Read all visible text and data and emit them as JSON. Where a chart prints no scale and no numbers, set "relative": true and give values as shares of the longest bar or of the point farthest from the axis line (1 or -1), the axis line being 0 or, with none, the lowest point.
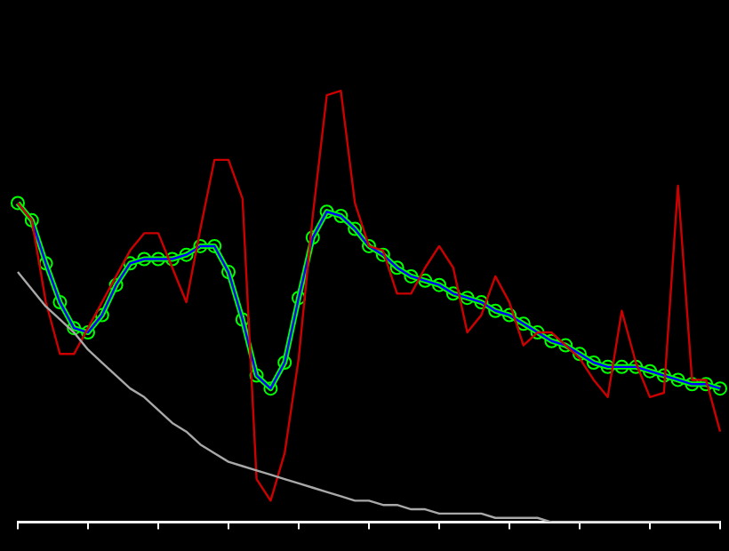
{
  "chart_data": {
    "type": "line",
    "relative": true,
    "legend": false,
    "grid": false,
    "categories": [
      null,
      null,
      null,
      null,
      null,
      null,
      null,
      null,
      null,
      null,
      null,
      null,
      null,
      null,
      null,
      null,
      null,
      null,
      null,
      null,
      null,
      null,
      null,
      null,
      null,
      null,
      null,
      null,
      null,
      null,
      null,
      null,
      null,
      null,
      null,
      null,
      null,
      null,
      null,
      null,
      null,
      null,
      null,
      null,
      null,
      null,
      null,
      null,
      null,
      null,
      null
    ],
    "series": [
      {
        "color": "#a8a8a8",
        "marker": "none",
        "values": [
          0.58,
          0.54,
          0.5,
          0.47,
          0.44,
          0.4,
          0.37,
          0.34,
          0.31,
          0.29,
          0.26,
          0.23,
          0.21,
          0.18,
          0.16,
          0.14,
          0.13,
          0.12,
          0.11,
          0.1,
          0.09,
          0.08,
          0.07,
          0.06,
          0.05,
          0.05,
          0.04,
          0.04,
          0.03,
          0.03,
          0.02,
          0.02,
          0.02,
          0.02,
          0.01,
          0.01,
          0.01,
          0.01,
          0,
          0,
          0,
          0,
          0,
          0,
          0,
          0,
          0,
          0,
          0,
          0,
          0
        ]
      },
      {
        "color": "#cc0000",
        "marker": "none",
        "values": [
          0.74,
          0.7,
          0.51,
          0.39,
          0.39,
          0.45,
          0.51,
          0.57,
          0.63,
          0.67,
          0.67,
          0.59,
          0.51,
          0.68,
          0.84,
          0.84,
          0.75,
          0.1,
          0.05,
          0.16,
          0.38,
          0.71,
          0.99,
          1,
          0.74,
          0.64,
          0.63,
          0.53,
          0.53,
          0.59,
          0.64,
          0.59,
          0.44,
          0.48,
          0.57,
          0.51,
          0.41,
          0.44,
          0.44,
          0.41,
          0.38,
          0.33,
          0.29,
          0.49,
          0.37,
          0.29,
          0.3,
          0.78,
          0.33,
          0.33,
          0.21
        ]
      },
      {
        "color": "#0000ff",
        "marker": "none",
        "values": [
          0.74,
          0.7,
          0.6,
          0.51,
          0.45,
          0.44,
          0.48,
          0.55,
          0.6,
          0.61,
          0.61,
          0.61,
          0.62,
          0.64,
          0.64,
          0.58,
          0.47,
          0.34,
          0.31,
          0.37,
          0.52,
          0.66,
          0.72,
          0.71,
          0.68,
          0.64,
          0.62,
          0.59,
          0.57,
          0.56,
          0.55,
          0.53,
          0.52,
          0.51,
          0.49,
          0.48,
          0.46,
          0.44,
          0.42,
          0.41,
          0.39,
          0.37,
          0.36,
          0.36,
          0.36,
          0.35,
          0.34,
          0.33,
          0.32,
          0.32,
          0.31
        ]
      },
      {
        "color": "#00ff00",
        "marker": "circle",
        "values": [
          0.74,
          0.7,
          0.6,
          0.51,
          0.45,
          0.44,
          0.48,
          0.55,
          0.6,
          0.61,
          0.61,
          0.61,
          0.62,
          0.64,
          0.64,
          0.58,
          0.47,
          0.34,
          0.31,
          0.37,
          0.52,
          0.66,
          0.72,
          0.71,
          0.68,
          0.64,
          0.62,
          0.59,
          0.57,
          0.56,
          0.55,
          0.53,
          0.52,
          0.51,
          0.49,
          0.48,
          0.46,
          0.44,
          0.42,
          0.41,
          0.39,
          0.37,
          0.36,
          0.36,
          0.36,
          0.35,
          0.34,
          0.33,
          0.32,
          0.32,
          0.31
        ]
      }
    ]
  }
}
